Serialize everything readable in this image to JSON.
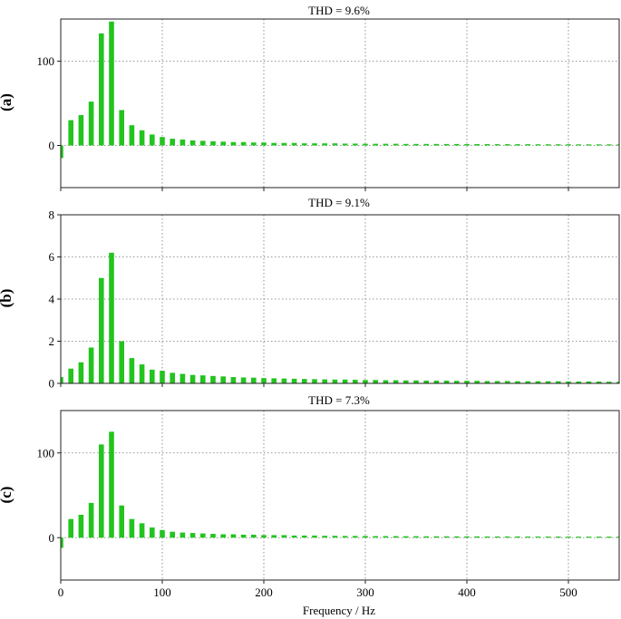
{
  "figure": {
    "xlabel": "Frequency / Hz",
    "bar_color": "#22c41e",
    "grid_color": "#777777"
  },
  "chart_data": [
    {
      "type": "bar",
      "panel_label": "(a)",
      "title": "THD = 9.6%",
      "xlabel": "Frequency / Hz",
      "ylabel": "",
      "xlim": [
        0,
        550
      ],
      "ylim": [
        -50,
        150
      ],
      "xticks": [
        0,
        100,
        200,
        300,
        400,
        500
      ],
      "yticks": [
        0,
        100
      ],
      "grid": true,
      "bar_width": 5,
      "x": [
        0,
        10,
        20,
        30,
        40,
        50,
        60,
        70,
        80,
        90,
        100,
        110,
        120,
        130,
        140,
        150,
        160,
        170,
        180,
        190,
        200,
        210,
        220,
        230,
        240,
        250,
        260,
        270,
        280,
        290,
        300,
        310,
        320,
        330,
        340,
        350,
        360,
        370,
        380,
        390,
        400,
        410,
        420,
        430,
        440,
        450,
        460,
        470,
        480,
        490,
        500,
        510,
        520,
        530,
        540,
        550
      ],
      "values": [
        -15,
        30,
        36,
        52,
        133,
        147,
        42,
        24,
        18,
        13,
        10,
        8,
        7,
        6,
        5.5,
        5,
        4.5,
        4,
        4,
        3.5,
        3.5,
        3,
        3,
        3,
        2.5,
        2.5,
        2.5,
        2.5,
        2.2,
        2.2,
        2,
        2,
        2,
        2,
        1.8,
        1.8,
        1.8,
        1.8,
        1.7,
        1.7,
        1.6,
        1.6,
        1.6,
        1.5,
        1.5,
        1.5,
        1.5,
        1.4,
        1.4,
        1.4,
        1.4,
        1.3,
        1.3,
        1.3,
        1.3,
        1.3
      ]
    },
    {
      "type": "bar",
      "panel_label": "(b)",
      "title": "THD = 9.1%",
      "xlabel": "Frequency / Hz",
      "ylabel": "",
      "xlim": [
        0,
        550
      ],
      "ylim": [
        0,
        8
      ],
      "xticks": [
        0,
        100,
        200,
        300,
        400,
        500
      ],
      "yticks": [
        0,
        2,
        4,
        6,
        8
      ],
      "grid": true,
      "bar_width": 5,
      "x": [
        0,
        10,
        20,
        30,
        40,
        50,
        60,
        70,
        80,
        90,
        100,
        110,
        120,
        130,
        140,
        150,
        160,
        170,
        180,
        190,
        200,
        210,
        220,
        230,
        240,
        250,
        260,
        270,
        280,
        290,
        300,
        310,
        320,
        330,
        340,
        350,
        360,
        370,
        380,
        390,
        400,
        410,
        420,
        430,
        440,
        450,
        460,
        470,
        480,
        490,
        500,
        510,
        520,
        530,
        540,
        550
      ],
      "values": [
        0.3,
        0.7,
        1.0,
        1.7,
        5.0,
        6.2,
        2.0,
        1.2,
        0.9,
        0.65,
        0.6,
        0.5,
        0.45,
        0.4,
        0.38,
        0.35,
        0.33,
        0.3,
        0.28,
        0.27,
        0.25,
        0.24,
        0.23,
        0.22,
        0.21,
        0.2,
        0.19,
        0.18,
        0.18,
        0.17,
        0.16,
        0.16,
        0.15,
        0.15,
        0.14,
        0.14,
        0.13,
        0.13,
        0.13,
        0.12,
        0.12,
        0.12,
        0.11,
        0.11,
        0.11,
        0.1,
        0.1,
        0.1,
        0.1,
        0.1,
        0.09,
        0.09,
        0.09,
        0.09,
        0.08,
        0.08
      ]
    },
    {
      "type": "bar",
      "panel_label": "(c)",
      "title": "THD = 7.3%",
      "xlabel": "Frequency / Hz",
      "ylabel": "",
      "xlim": [
        0,
        550
      ],
      "ylim": [
        -50,
        150
      ],
      "xticks": [
        0,
        100,
        200,
        300,
        400,
        500
      ],
      "yticks": [
        0,
        100
      ],
      "grid": true,
      "bar_width": 5,
      "x": [
        0,
        10,
        20,
        30,
        40,
        50,
        60,
        70,
        80,
        90,
        100,
        110,
        120,
        130,
        140,
        150,
        160,
        170,
        180,
        190,
        200,
        210,
        220,
        230,
        240,
        250,
        260,
        270,
        280,
        290,
        300,
        310,
        320,
        330,
        340,
        350,
        360,
        370,
        380,
        390,
        400,
        410,
        420,
        430,
        440,
        450,
        460,
        470,
        480,
        490,
        500,
        510,
        520,
        530,
        540,
        550
      ],
      "values": [
        -12,
        22,
        27,
        41,
        110,
        125,
        38,
        22,
        17,
        12,
        9,
        7,
        6,
        5.5,
        5,
        4.5,
        4,
        4,
        3.5,
        3.5,
        3,
        3,
        3,
        2.5,
        2.5,
        2.5,
        2.2,
        2.2,
        2,
        2,
        2,
        1.8,
        1.8,
        1.8,
        1.7,
        1.7,
        1.6,
        1.6,
        1.6,
        1.5,
        1.5,
        1.5,
        1.4,
        1.4,
        1.4,
        1.4,
        1.3,
        1.3,
        1.3,
        1.3,
        1.2,
        1.2,
        1.2,
        1.2,
        1.2,
        1.2
      ]
    }
  ]
}
